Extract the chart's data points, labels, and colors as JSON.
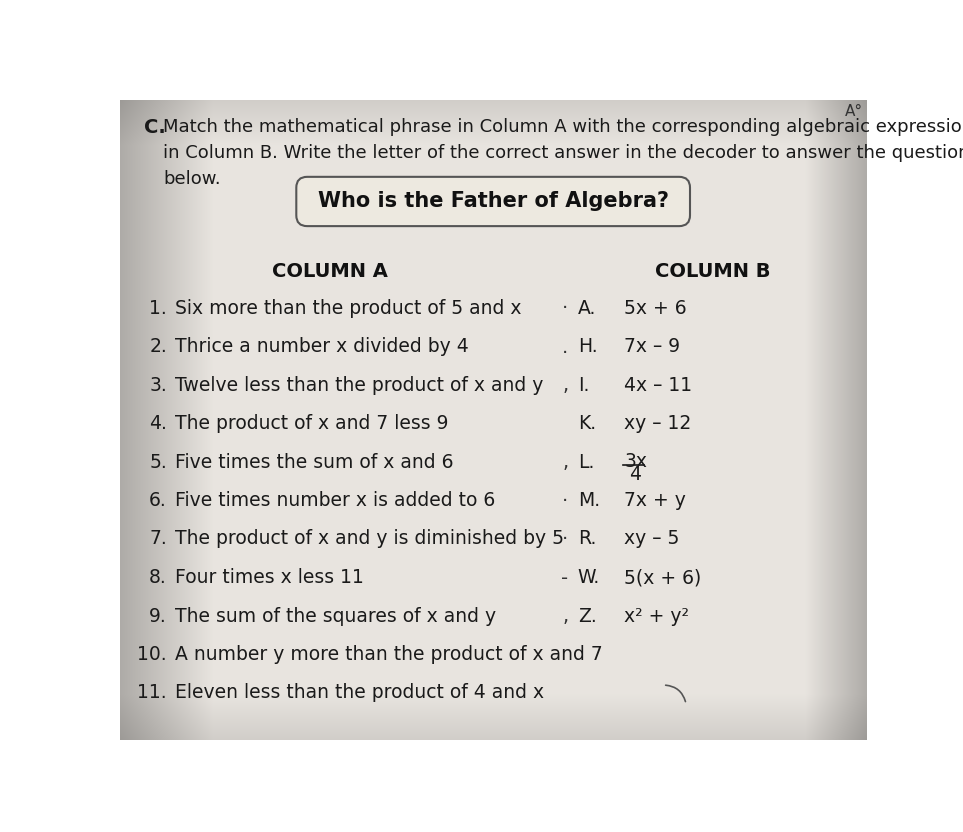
{
  "bg_color_center": "#e8e4dc",
  "bg_color_edge": "#b8b0a0",
  "title_prefix": "C.",
  "box_title": "Who is the Father of Algebra?",
  "col_a_header": "COLUMN A",
  "col_b_header": "COLUMN B",
  "column_a_nums": [
    "1.",
    "2.",
    "3.",
    "4.",
    "5.",
    "6.",
    "7.",
    "8.",
    "9.",
    "10.",
    "11."
  ],
  "column_a_texts": [
    "Six more than the product of 5 and x",
    "Thrice a number x divided by 4",
    "Twelve less than the product of x and y",
    "The product of x and 7 less 9",
    "Five times the sum of x and 6",
    "Five times number x is added to 6",
    "The product of x and y is diminished by 5",
    "Four times x less 11",
    "The sum of the squares of x and y",
    "A number y more than the product of x and 7",
    "Eleven less than the product of 4 and x"
  ],
  "column_b_letters": [
    "A.",
    "H.",
    "I.",
    "K.",
    "L.",
    "M.",
    "R.",
    "W.",
    "Z."
  ],
  "column_b_exprs": [
    "5x + 6",
    "7x – 9",
    "4x – 11",
    "xy – 12",
    "FRACTION_3x_4",
    "7x + y",
    "xy – 5",
    "5(x + 6)",
    "x² + y²"
  ],
  "bullet_prefix": [
    "· A.",
    ". H.",
    ",I.",
    "K.",
    ", L.",
    "·M.",
    "·R.",
    "-W.",
    ",Z."
  ],
  "font_size_body": 13.5,
  "font_size_header": 14,
  "font_size_title_box": 15,
  "font_size_instruction": 13
}
